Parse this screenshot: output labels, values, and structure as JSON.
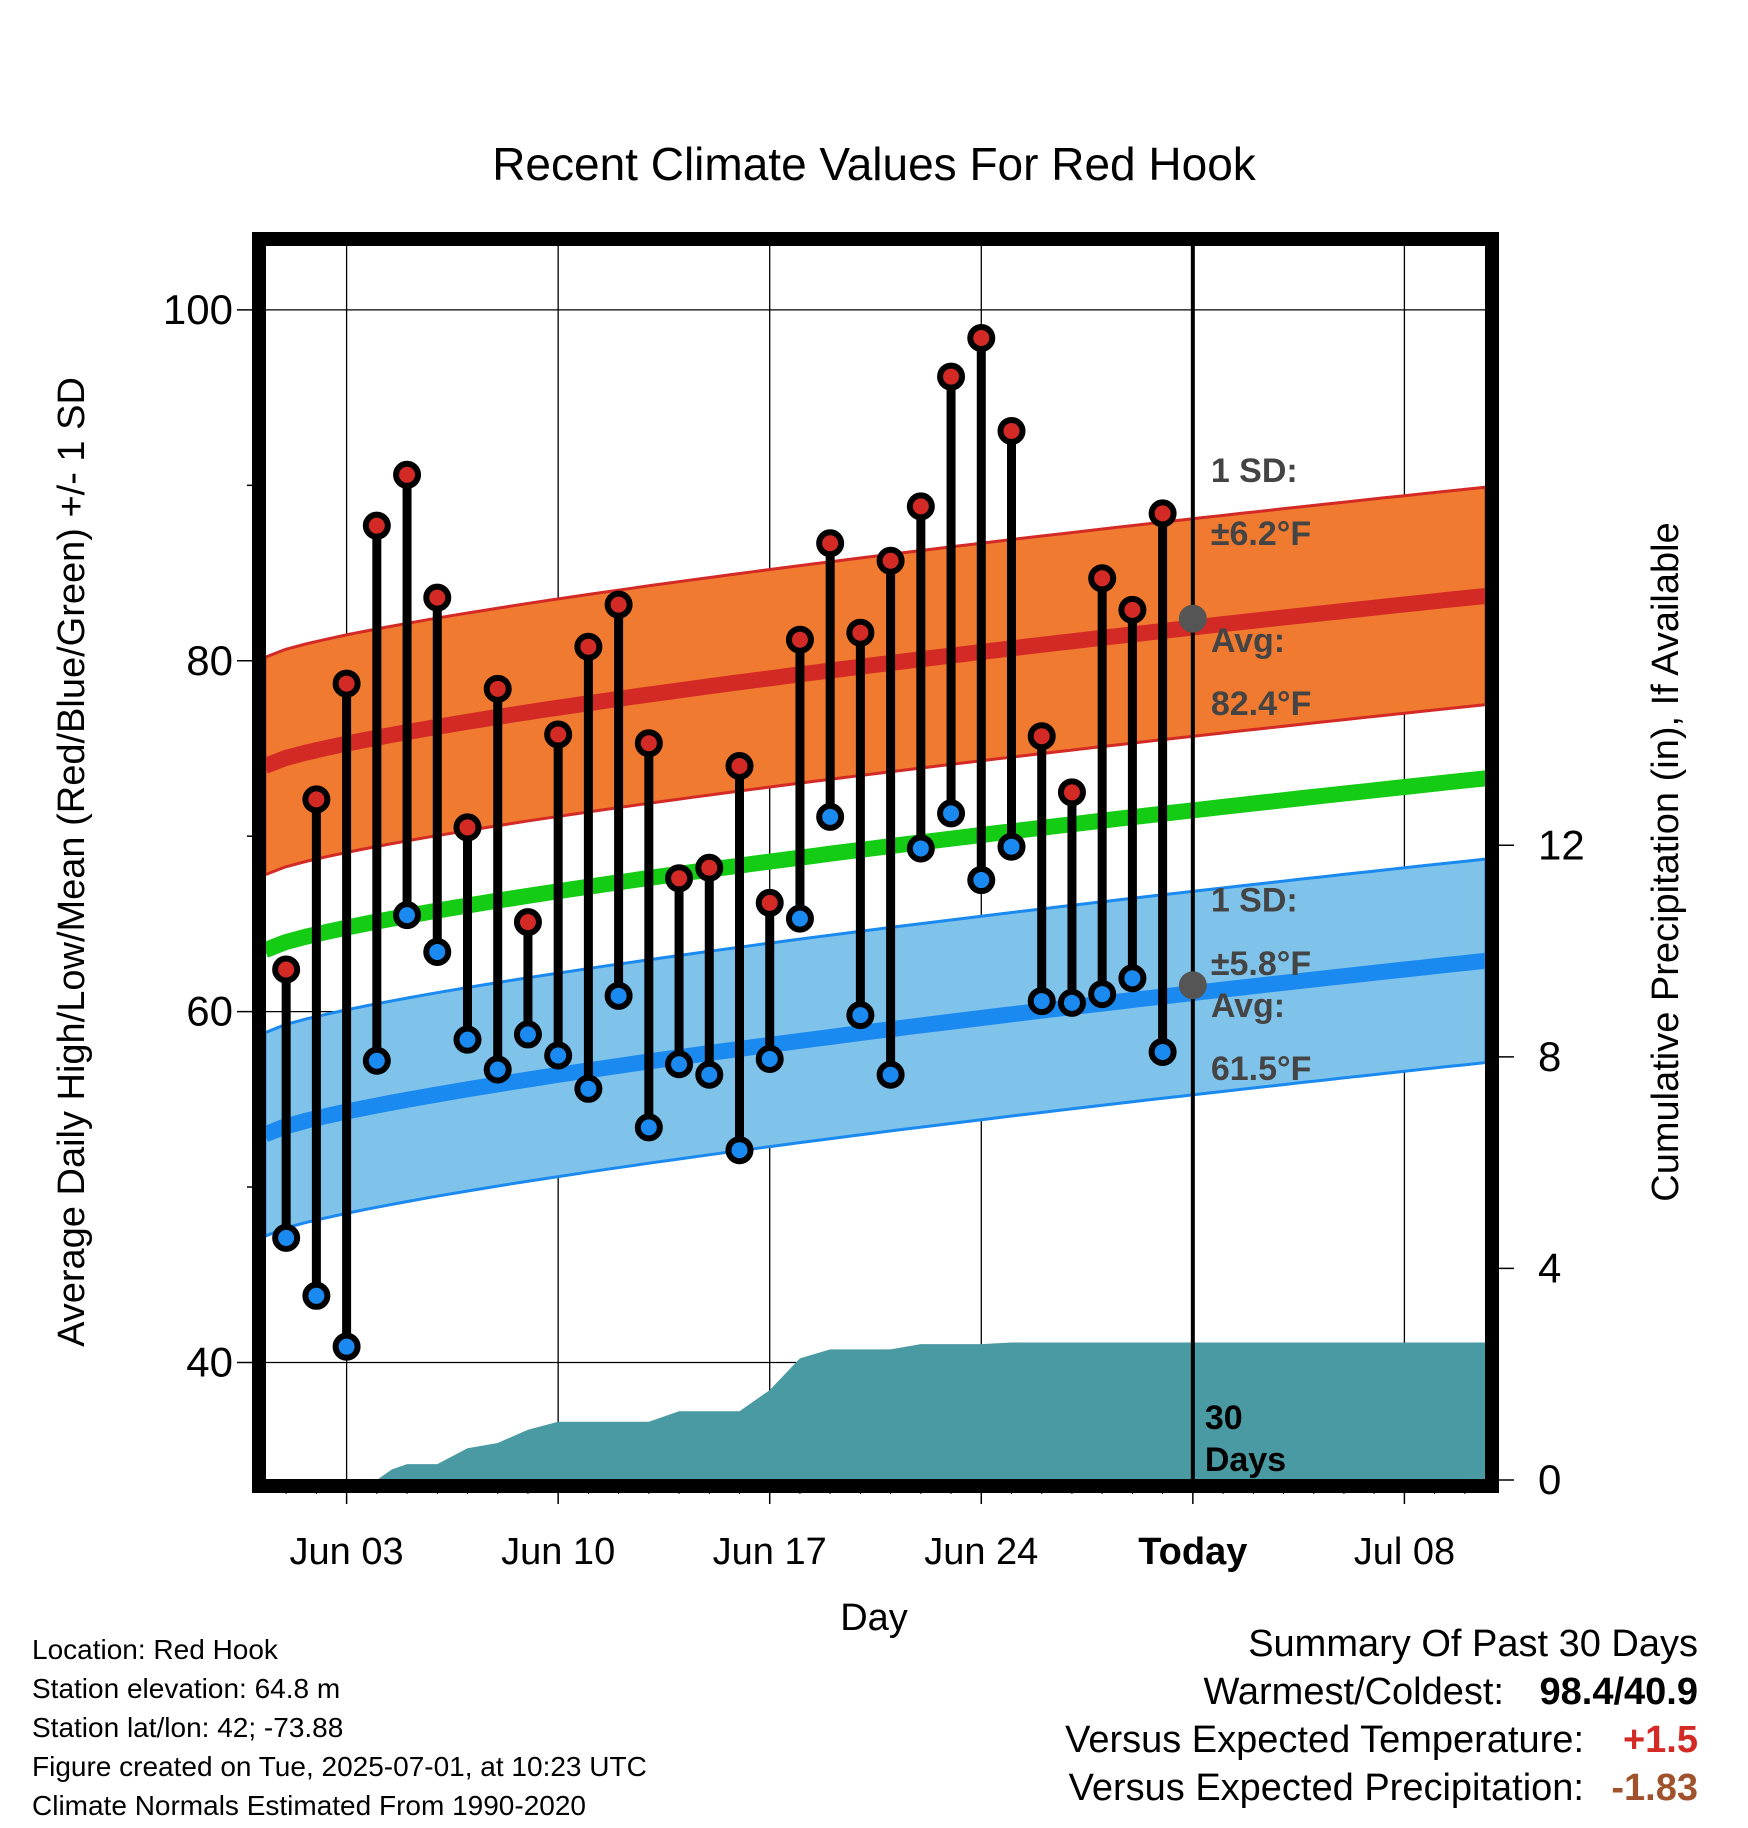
{
  "chart_data": {
    "type": "line",
    "title": "Recent Climate Values For Red Hook",
    "xlabel": "Day",
    "ylabel_left": "Average Daily High/Low/Mean (Red/Blue/Green) +/- 1 SD",
    "ylabel_right": "Cumulative Precipitation (in), If Available",
    "x_ticks": [
      "Jun 03",
      "Jun 10",
      "Jun 17",
      "Jun 24",
      "Today",
      "Jul 08"
    ],
    "x_tick_days": [
      3,
      10,
      17,
      24,
      31,
      38
    ],
    "x_range_days": [
      0.3,
      40.7
    ],
    "ylim_left": [
      33.3,
      103.7
    ],
    "y_ticks_left": [
      40,
      60,
      80,
      100
    ],
    "ylim_right": [
      0,
      23.35
    ],
    "y_ticks_right": [
      0,
      4,
      8,
      12
    ],
    "today_day": 31,
    "grid": true,
    "daily_observations": {
      "days": [
        1,
        2,
        3,
        4,
        5,
        6,
        7,
        8,
        9,
        10,
        11,
        12,
        13,
        14,
        15,
        16,
        17,
        18,
        19,
        20,
        21,
        22,
        23,
        24,
        25,
        26,
        27,
        28,
        29,
        30
      ],
      "highs": [
        62.4,
        72.1,
        78.7,
        87.7,
        90.6,
        83.6,
        70.5,
        78.4,
        65.1,
        75.8,
        80.8,
        83.2,
        75.3,
        67.6,
        68.2,
        74.0,
        66.2,
        81.2,
        86.7,
        81.6,
        85.7,
        88.8,
        96.2,
        98.4,
        93.1,
        75.7,
        72.5,
        84.7,
        82.9,
        88.4
      ],
      "lows": [
        47.1,
        43.8,
        40.9,
        57.2,
        65.5,
        63.4,
        58.4,
        56.7,
        58.7,
        57.5,
        55.6,
        60.9,
        53.4,
        57.0,
        56.4,
        52.1,
        57.3,
        65.3,
        71.1,
        59.8,
        56.4,
        69.3,
        71.3,
        67.5,
        69.4,
        60.6,
        60.5,
        61.0,
        61.9,
        57.7
      ]
    },
    "normal_high": {
      "start": 74.0,
      "end": 83.7,
      "sd": 6.2,
      "today_avg": 82.4
    },
    "normal_low": {
      "start": 53.0,
      "end": 62.9,
      "sd": 5.8,
      "today_avg": 61.5
    },
    "normal_mean": {
      "start": 63.5,
      "end": 73.3
    },
    "precipitation": {
      "days": [
        4,
        4.5,
        5,
        6,
        7,
        8,
        9,
        10,
        11,
        12,
        13,
        14,
        15,
        16,
        17,
        18,
        19,
        20,
        21,
        22,
        23,
        24,
        25,
        26,
        27,
        28,
        29,
        30,
        31,
        40.7
      ],
      "cumulative": [
        0,
        0.2,
        0.3,
        0.3,
        0.6,
        0.7,
        0.95,
        1.1,
        1.1,
        1.1,
        1.1,
        1.3,
        1.3,
        1.3,
        1.7,
        2.3,
        2.47,
        2.47,
        2.47,
        2.57,
        2.57,
        2.57,
        2.6,
        2.6,
        2.6,
        2.6,
        2.6,
        2.6,
        2.6,
        2.6
      ]
    },
    "annotations": {
      "high_sd_label": "1 SD:",
      "high_sd_value": "±6.2°F",
      "high_avg_label": "Avg:",
      "high_avg_value": "82.4°F",
      "low_sd_label": "1 SD:",
      "low_sd_value": "±5.8°F",
      "low_avg_label": "Avg:",
      "low_avg_value": "61.5°F",
      "window_label_1": "30",
      "window_label_2": "Days"
    },
    "colors": {
      "high_band": "#f07b30",
      "high_line": "#d42a26",
      "low_band": "#80c3ea",
      "low_line": "#1a8af0",
      "mean_line": "#13cc13",
      "precip_fill": "#4a9aa3",
      "high_dot": "#d42a26",
      "low_dot": "#1a8af0",
      "annotation_text": "#444444"
    }
  },
  "info": {
    "location": "Location: Red Hook",
    "elevation": "Station elevation: 64.8 m",
    "latlon": "Station lat/lon: 42; -73.88",
    "created": "Figure created on Tue, 2025-07-01, at 10:23 UTC",
    "normals": "Climate Normals Estimated From 1990-2020"
  },
  "summary": {
    "title": "Summary Of Past 30 Days",
    "warm_cold_label": "Warmest/Coldest:",
    "warm_cold_value": "98.4/40.9",
    "temp_label": "Versus Expected Temperature:",
    "temp_value": "+1.5",
    "temp_color": "#d42a26",
    "precip_label": "Versus Expected Precipitation:",
    "precip_value": "-1.83",
    "precip_color": "#a0522d"
  }
}
